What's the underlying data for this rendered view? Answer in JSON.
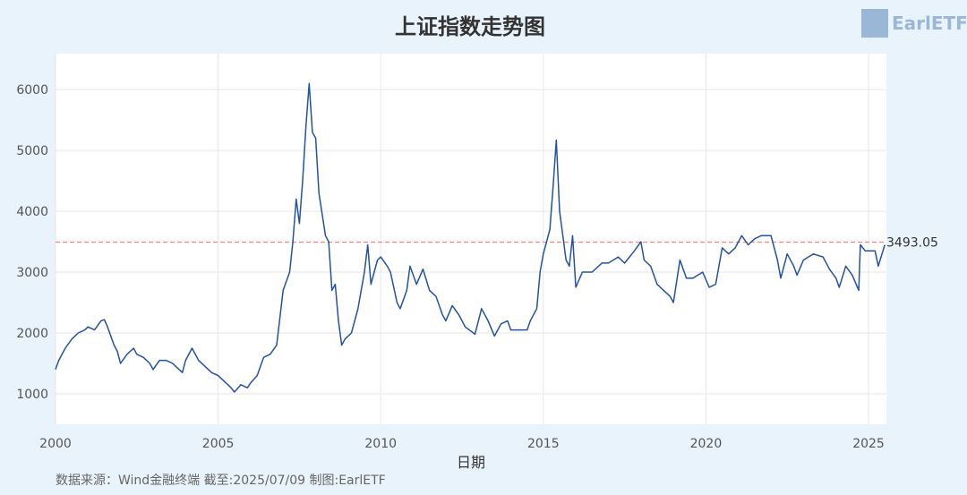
{
  "chart_data": {
    "type": "line",
    "title": "上证指数走势图",
    "x_label": "日期",
    "source": "数据来源：Wind金融终端 截至:2025/07/09 制图:EarlETF",
    "watermark": "EarlETF",
    "xlim": [
      2000,
      2025.55
    ],
    "xticks": [
      2000,
      2005,
      2010,
      2015,
      2020,
      2025
    ],
    "ylim": [
      500,
      6590
    ],
    "yticks": [
      1000,
      2000,
      3000,
      4000,
      5000,
      6000
    ],
    "grid": true,
    "reference_line": {
      "value": 3493.05,
      "color": "#f08a80"
    },
    "series": [
      {
        "color": "#2352a0",
        "x": [
          2000.0,
          2000.1,
          2000.3,
          2000.5,
          2000.7,
          2000.9,
          2001.0,
          2001.2,
          2001.4,
          2001.5,
          2001.6,
          2001.8,
          2001.9,
          2002.0,
          2002.2,
          2002.4,
          2002.5,
          2002.7,
          2002.9,
          2003.0,
          2003.2,
          2003.4,
          2003.6,
          2003.8,
          2003.9,
          2004.0,
          2004.2,
          2004.4,
          2004.6,
          2004.8,
          2005.0,
          2005.2,
          2005.4,
          2005.5,
          2005.7,
          2005.9,
          2006.0,
          2006.2,
          2006.4,
          2006.6,
          2006.8,
          2007.0,
          2007.2,
          2007.3,
          2007.4,
          2007.5,
          2007.6,
          2007.7,
          2007.8,
          2007.9,
          2008.0,
          2008.1,
          2008.3,
          2008.4,
          2008.5,
          2008.6,
          2008.7,
          2008.8,
          2008.9,
          2009.1,
          2009.3,
          2009.5,
          2009.6,
          2009.7,
          2009.8,
          2009.9,
          2010.0,
          2010.2,
          2010.3,
          2010.5,
          2010.6,
          2010.8,
          2010.9,
          2011.1,
          2011.3,
          2011.5,
          2011.7,
          2011.9,
          2012.0,
          2012.2,
          2012.4,
          2012.6,
          2012.9,
          2013.1,
          2013.3,
          2013.5,
          2013.7,
          2013.9,
          2014.0,
          2014.3,
          2014.5,
          2014.6,
          2014.8,
          2014.9,
          2015.0,
          2015.2,
          2015.3,
          2015.4,
          2015.5,
          2015.6,
          2015.7,
          2015.8,
          2015.9,
          2016.0,
          2016.2,
          2016.5,
          2016.8,
          2017.0,
          2017.3,
          2017.5,
          2017.8,
          2018.0,
          2018.1,
          2018.3,
          2018.5,
          2018.7,
          2018.9,
          2019.0,
          2019.2,
          2019.4,
          2019.6,
          2019.9,
          2020.1,
          2020.3,
          2020.5,
          2020.7,
          2020.9,
          2021.1,
          2021.3,
          2021.5,
          2021.7,
          2021.9,
          2022.0,
          2022.2,
          2022.3,
          2022.5,
          2022.7,
          2022.8,
          2023.0,
          2023.3,
          2023.6,
          2023.8,
          2024.0,
          2024.1,
          2024.3,
          2024.5,
          2024.7,
          2024.75,
          2024.9,
          2025.0,
          2025.2,
          2025.3,
          2025.5
        ],
        "values": [
          1400,
          1550,
          1750,
          1900,
          2000,
          2050,
          2100,
          2050,
          2200,
          2220,
          2100,
          1800,
          1700,
          1500,
          1650,
          1750,
          1650,
          1600,
          1500,
          1400,
          1550,
          1550,
          1500,
          1400,
          1350,
          1550,
          1750,
          1550,
          1450,
          1350,
          1300,
          1200,
          1100,
          1030,
          1150,
          1100,
          1180,
          1300,
          1600,
          1650,
          1800,
          2700,
          3000,
          3500,
          4200,
          3800,
          4500,
          5400,
          6100,
          5300,
          5200,
          4300,
          3600,
          3500,
          2700,
          2800,
          2200,
          1800,
          1900,
          2000,
          2400,
          3000,
          3450,
          2800,
          3000,
          3200,
          3250,
          3100,
          3000,
          2500,
          2400,
          2700,
          3100,
          2800,
          3050,
          2700,
          2600,
          2300,
          2200,
          2450,
          2300,
          2100,
          1980,
          2400,
          2200,
          1950,
          2150,
          2200,
          2050,
          2050,
          2050,
          2200,
          2400,
          3000,
          3300,
          3700,
          4400,
          5170,
          4000,
          3600,
          3200,
          3100,
          3600,
          2750,
          3000,
          3000,
          3150,
          3150,
          3250,
          3150,
          3350,
          3500,
          3200,
          3100,
          2800,
          2700,
          2600,
          2500,
          3200,
          2900,
          2900,
          3000,
          2750,
          2800,
          3400,
          3300,
          3400,
          3600,
          3450,
          3550,
          3600,
          3600,
          3600,
          3200,
          2900,
          3300,
          3100,
          2950,
          3200,
          3300,
          3250,
          3050,
          2900,
          2750,
          3100,
          2950,
          2700,
          3450,
          3350,
          3350,
          3350,
          3100,
          3450
        ]
      }
    ]
  }
}
